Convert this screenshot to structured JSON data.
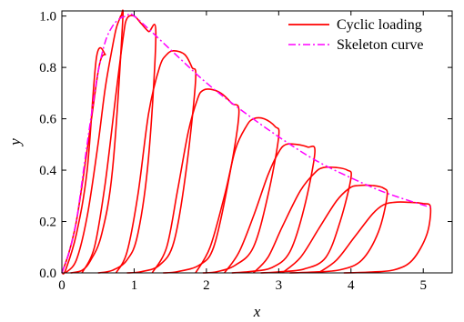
{
  "chart_data": {
    "type": "line",
    "title": "",
    "xlabel": "x",
    "ylabel": "y",
    "xlim": [
      0,
      5.4
    ],
    "ylim": [
      0,
      1.02
    ],
    "x_ticks": [
      0,
      1,
      2,
      3,
      4,
      5
    ],
    "y_ticks": [
      0.0,
      0.2,
      0.4,
      0.6,
      0.8,
      1.0
    ],
    "x_tick_labels": [
      "0",
      "1",
      "2",
      "3",
      "4",
      "5"
    ],
    "y_tick_labels": [
      "0.0",
      "0.2",
      "0.4",
      "0.6",
      "0.8",
      "1.0"
    ],
    "grid": false,
    "legend_position": "top-right",
    "series": [
      {
        "name": "Cyclic loading",
        "color": "#ff0000",
        "style": "solid",
        "cycles": [
          {
            "x": [
              0.0,
              0.1,
              0.2,
              0.3,
              0.4,
              0.5,
              0.55,
              0.6,
              0.48,
              0.35,
              0.2,
              0.05,
              0.0
            ],
            "y": [
              0.0,
              0.08,
              0.2,
              0.38,
              0.58,
              0.78,
              0.84,
              0.85,
              0.84,
              0.4,
              0.15,
              0.01,
              0.0
            ]
          },
          {
            "x": [
              0.05,
              0.2,
              0.35,
              0.5,
              0.6,
              0.7,
              0.75,
              0.8,
              0.82,
              0.84,
              0.7,
              0.55,
              0.4,
              0.28,
              0.12
            ],
            "y": [
              0.0,
              0.05,
              0.22,
              0.5,
              0.72,
              0.88,
              0.95,
              0.99,
              1.0,
              0.97,
              0.4,
              0.15,
              0.05,
              0.01,
              0.0
            ]
          },
          {
            "x": [
              0.28,
              0.45,
              0.6,
              0.75,
              0.85,
              0.9,
              1.0,
              1.1,
              1.2,
              1.3,
              1.2,
              1.05,
              0.9,
              0.7,
              0.5
            ],
            "y": [
              0.0,
              0.1,
              0.35,
              0.7,
              0.92,
              0.99,
              1.0,
              0.97,
              0.94,
              0.93,
              0.45,
              0.15,
              0.05,
              0.01,
              0.0
            ]
          },
          {
            "x": [
              0.75,
              0.9,
              1.05,
              1.2,
              1.35,
              1.45,
              1.55,
              1.7,
              1.8,
              1.85,
              1.72,
              1.55,
              1.35,
              1.1,
              0.9
            ],
            "y": [
              0.0,
              0.08,
              0.3,
              0.62,
              0.8,
              0.85,
              0.865,
              0.85,
              0.8,
              0.75,
              0.4,
              0.12,
              0.03,
              0.005,
              0.0
            ]
          },
          {
            "x": [
              1.25,
              1.45,
              1.6,
              1.75,
              1.88,
              1.95,
              2.05,
              2.2,
              2.35,
              2.45,
              2.3,
              2.1,
              1.9,
              1.6,
              1.4
            ],
            "y": [
              0.0,
              0.1,
              0.32,
              0.55,
              0.68,
              0.71,
              0.715,
              0.7,
              0.66,
              0.62,
              0.35,
              0.1,
              0.03,
              0.005,
              0.0
            ]
          },
          {
            "x": [
              1.85,
              2.05,
              2.25,
              2.4,
              2.55,
              2.65,
              2.8,
              2.95,
              3.0,
              2.85,
              2.65,
              2.4,
              2.15,
              1.95
            ],
            "y": [
              0.0,
              0.1,
              0.3,
              0.48,
              0.57,
              0.6,
              0.6,
              0.57,
              0.53,
              0.3,
              0.1,
              0.03,
              0.005,
              0.0
            ]
          },
          {
            "x": [
              2.25,
              2.45,
              2.65,
              2.85,
              3.0,
              3.1,
              3.25,
              3.4,
              3.5,
              3.35,
              3.15,
              2.9,
              2.6,
              2.35
            ],
            "y": [
              0.0,
              0.08,
              0.22,
              0.38,
              0.47,
              0.5,
              0.5,
              0.49,
              0.47,
              0.25,
              0.08,
              0.02,
              0.005,
              0.0
            ]
          },
          {
            "x": [
              2.65,
              2.85,
              3.05,
              3.3,
              3.5,
              3.62,
              3.8,
              3.95,
              4.0,
              3.85,
              3.65,
              3.35,
              3.0,
              2.75
            ],
            "y": [
              0.0,
              0.06,
              0.18,
              0.32,
              0.39,
              0.41,
              0.41,
              0.4,
              0.37,
              0.2,
              0.06,
              0.015,
              0.004,
              0.0
            ]
          },
          {
            "x": [
              3.05,
              3.3,
              3.55,
              3.8,
              3.98,
              4.1,
              4.3,
              4.45,
              4.5,
              4.38,
              4.15,
              3.85,
              3.45,
              3.15
            ],
            "y": [
              0.0,
              0.06,
              0.17,
              0.28,
              0.33,
              0.34,
              0.34,
              0.33,
              0.3,
              0.16,
              0.05,
              0.012,
              0.003,
              0.0
            ]
          },
          {
            "x": [
              3.55,
              3.8,
              4.05,
              4.3,
              4.45,
              4.6,
              4.8,
              5.0,
              5.1,
              5.05,
              4.85,
              4.6,
              4.25,
              3.9
            ],
            "y": [
              0.0,
              0.05,
              0.14,
              0.23,
              0.265,
              0.275,
              0.275,
              0.27,
              0.255,
              0.15,
              0.05,
              0.012,
              0.003,
              0.0
            ]
          }
        ]
      },
      {
        "name": "Skeleton curve",
        "color": "#ff00ff",
        "style": "dashdot",
        "x": [
          0.0,
          0.1,
          0.2,
          0.3,
          0.4,
          0.5,
          0.6,
          0.7,
          0.8,
          0.9,
          1.0,
          1.5,
          2.0,
          2.5,
          3.0,
          3.5,
          4.0,
          4.5,
          5.1
        ],
        "y": [
          0.0,
          0.08,
          0.2,
          0.4,
          0.6,
          0.78,
          0.9,
          0.96,
          0.99,
          1.0,
          1.0,
          0.87,
          0.74,
          0.63,
          0.53,
          0.44,
          0.37,
          0.31,
          0.255
        ]
      }
    ]
  }
}
